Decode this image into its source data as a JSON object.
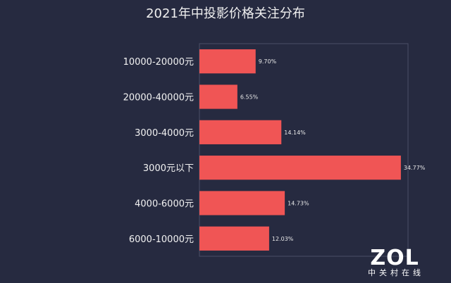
{
  "chart_data": {
    "type": "bar",
    "orientation": "horizontal",
    "title": "2021年中投影价格关注分布",
    "categories": [
      "10000-20000元",
      "20000-40000元",
      "3000-4000元",
      "3000元以下",
      "4000-6000元",
      "6000-10000元"
    ],
    "values": [
      9.7,
      6.55,
      14.14,
      34.77,
      14.73,
      12.03
    ],
    "value_labels": [
      "9.70%",
      "6.55%",
      "14.14%",
      "34.77%",
      "14.73%",
      "12.03%"
    ],
    "xlim": [
      0,
      36
    ],
    "grid": false,
    "bar_color": "#f05555"
  },
  "logo": {
    "main": "ZOL",
    "sub": "中关村在线"
  },
  "colors": {
    "background": "#262a40",
    "plot_border": "#4a4f66",
    "bar": "#f05555"
  }
}
